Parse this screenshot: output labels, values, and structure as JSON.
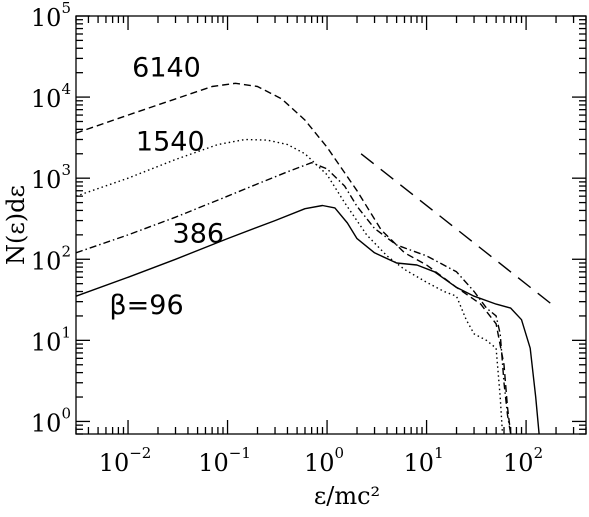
{
  "chart_data": {
    "type": "line",
    "title": "",
    "xlabel": "ε/mc²",
    "ylabel": "N(ε)dε",
    "x_scale": "log",
    "y_scale": "log",
    "xlim": [
      0.003,
      400
    ],
    "ylim": [
      0.7,
      100000
    ],
    "grid": false,
    "x_ticks": [
      {
        "value": 0.01,
        "base": "10",
        "exp": "−2"
      },
      {
        "value": 0.1,
        "base": "10",
        "exp": "−1"
      },
      {
        "value": 1,
        "base": "10",
        "exp": "0"
      },
      {
        "value": 10,
        "base": "10",
        "exp": "1"
      },
      {
        "value": 100,
        "base": "10",
        "exp": "2"
      }
    ],
    "y_ticks": [
      {
        "value": 1,
        "base": "10",
        "exp": "0"
      },
      {
        "value": 10,
        "base": "10",
        "exp": "1"
      },
      {
        "value": 100,
        "base": "10",
        "exp": "2"
      },
      {
        "value": 1000,
        "base": "10",
        "exp": "3"
      },
      {
        "value": 10000,
        "base": "10",
        "exp": "4"
      },
      {
        "value": 100000,
        "base": "10",
        "exp": "5"
      }
    ],
    "series": [
      {
        "label": "6140",
        "style": "dashed",
        "label_at": [
          0.011,
          18000
        ],
        "x": [
          0.003,
          0.01,
          0.03,
          0.07,
          0.12,
          0.2,
          0.35,
          0.6,
          1,
          2,
          3.5,
          6,
          10,
          20,
          35,
          50,
          60,
          65,
          70
        ],
        "y": [
          3600,
          6000,
          9500,
          13500,
          14800,
          13500,
          9500,
          5200,
          2400,
          700,
          230,
          120,
          85,
          45,
          28,
          16,
          5,
          1.5,
          0.7
        ]
      },
      {
        "label": "1540",
        "style": "dotted",
        "label_at": [
          0.012,
          2200
        ],
        "x": [
          0.003,
          0.01,
          0.03,
          0.08,
          0.15,
          0.25,
          0.4,
          0.6,
          1,
          1.5,
          2.5,
          4,
          6,
          10,
          15,
          20,
          25,
          30,
          40,
          50,
          55,
          58
        ],
        "y": [
          600,
          1000,
          1700,
          2600,
          3000,
          2950,
          2600,
          2000,
          1100,
          500,
          200,
          110,
          75,
          52,
          40,
          35,
          18,
          12,
          10,
          8,
          2,
          0.7
        ]
      },
      {
        "label": "386",
        "style": "dashdot",
        "label_at": [
          0.028,
          160
        ],
        "x": [
          0.003,
          0.01,
          0.03,
          0.1,
          0.2,
          0.4,
          0.7,
          1,
          1.5,
          2,
          3,
          5,
          10,
          20,
          30,
          40,
          50,
          55,
          60,
          65,
          70
        ],
        "y": [
          120,
          200,
          330,
          600,
          850,
          1200,
          1550,
          1300,
          800,
          450,
          240,
          150,
          110,
          70,
          40,
          25,
          20,
          12,
          3,
          1.2,
          0.7
        ]
      },
      {
        "label": "β=96",
        "style": "solid",
        "label_at": [
          0.0065,
          21
        ],
        "x": [
          0.003,
          0.01,
          0.03,
          0.1,
          0.3,
          0.6,
          0.9,
          1.2,
          1.6,
          2,
          3,
          5,
          8,
          12,
          20,
          30,
          50,
          70,
          90,
          110,
          125,
          135
        ],
        "y": [
          35,
          60,
          100,
          180,
          300,
          420,
          460,
          430,
          280,
          180,
          120,
          90,
          85,
          70,
          45,
          35,
          28,
          25,
          18,
          8,
          2,
          0.7
        ]
      },
      {
        "label": "",
        "style": "longdash",
        "x": [
          2.2,
          180
        ],
        "y": [
          2000,
          28
        ]
      }
    ]
  }
}
